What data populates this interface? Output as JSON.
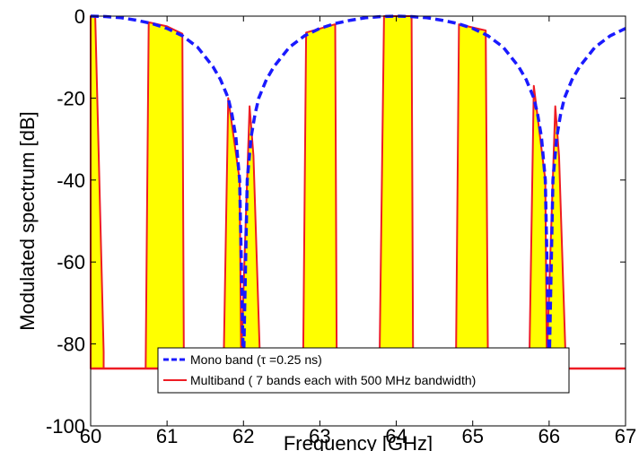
{
  "chart_data": {
    "type": "area",
    "title": "",
    "xlabel": "Frequency [GHz]",
    "ylabel": "Modulated spectrum [dB]",
    "xlim": [
      60,
      67
    ],
    "ylim": [
      -100,
      0
    ],
    "xticks": [
      60,
      61,
      62,
      63,
      64,
      65,
      66,
      67
    ],
    "yticks": [
      0,
      -20,
      -40,
      -60,
      -80,
      -100
    ],
    "grid": false,
    "legend_position": "bottom-center",
    "series": [
      {
        "name": "Mono band  (τ =0.25 ns)",
        "style": "dashed",
        "color": "#1a1aff",
        "x": [
          60.0,
          60.2,
          60.4,
          60.6,
          60.8,
          61.0,
          61.2,
          61.4,
          61.6,
          61.7,
          61.8,
          61.85,
          61.9,
          61.95,
          62.0,
          62.05,
          62.1,
          62.15,
          62.2,
          62.3,
          62.4,
          62.6,
          62.8,
          63.0,
          63.2,
          63.4,
          63.6,
          63.8,
          64.0,
          64.2,
          64.4,
          64.6,
          64.8,
          65.0,
          65.2,
          65.4,
          65.6,
          65.7,
          65.8,
          65.85,
          65.9,
          65.95,
          66.0,
          66.05,
          66.1,
          66.15,
          66.2,
          66.3,
          66.4,
          66.6,
          66.8,
          67.0
        ],
        "y": [
          0.0,
          -0.1,
          -0.4,
          -1.0,
          -1.8,
          -3.0,
          -4.8,
          -7.6,
          -12.3,
          -15.5,
          -20.0,
          -24.0,
          -29.5,
          -40.0,
          -86.0,
          -40.0,
          -29.5,
          -24.0,
          -20.0,
          -15.5,
          -12.3,
          -7.6,
          -4.8,
          -3.0,
          -1.8,
          -1.0,
          -0.4,
          -0.1,
          0.0,
          -0.1,
          -0.4,
          -1.0,
          -1.8,
          -3.0,
          -4.8,
          -7.6,
          -12.3,
          -15.5,
          -20.0,
          -24.0,
          -29.5,
          -40.0,
          -86.0,
          -40.0,
          -29.5,
          -24.0,
          -20.0,
          -15.5,
          -12.3,
          -7.6,
          -4.8,
          -3.0
        ]
      },
      {
        "name": "Multiband ( 7 bands each with 500 MHz bandwidth)",
        "style": "solid",
        "color": "#ee1c24",
        "fill": "#ffff00",
        "floor": -86,
        "bands": [
          {
            "x": [
              60.0,
              60.0,
              60.06,
              60.17,
              60.17
            ],
            "y": [
              -86,
              0.0,
              0.0,
              -82.0,
              -86
            ]
          },
          {
            "x": [
              60.72,
              60.76,
              61.0,
              61.2,
              61.22
            ],
            "y": [
              -86,
              -1.5,
              -2.5,
              -4.3,
              -86
            ]
          },
          {
            "x": [
              61.74,
              61.8,
              61.95,
              61.97,
              62.08,
              62.13,
              62.22
            ],
            "y": [
              -86,
              -20.0,
              -40.0,
              -84.0,
              -22.0,
              -34.0,
              -86
            ]
          },
          {
            "x": [
              62.78,
              62.82,
              63.2,
              63.22
            ],
            "y": [
              -86,
              -4.0,
              -2.0,
              -86
            ]
          },
          {
            "x": [
              63.78,
              63.84,
              64.2,
              64.22
            ],
            "y": [
              -86,
              0.0,
              0.0,
              -86
            ]
          },
          {
            "x": [
              64.78,
              64.82,
              65.17,
              65.2
            ],
            "y": [
              -86,
              -2.0,
              -3.5,
              -86
            ]
          },
          {
            "x": [
              65.74,
              65.8,
              65.95,
              65.97,
              66.08,
              66.13,
              66.22
            ],
            "y": [
              -86,
              -17.0,
              -40.0,
              -84.0,
              -22.0,
              -34.0,
              -86
            ]
          }
        ]
      }
    ]
  }
}
